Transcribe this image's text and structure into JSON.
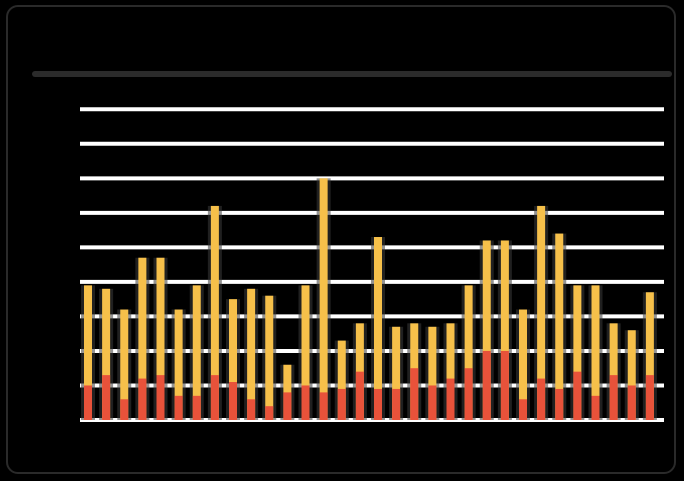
{
  "header": {
    "title": ""
  },
  "colors": {
    "background": "#000000",
    "gridline": "#ffffff",
    "divider": "#2b2b2b",
    "track": "#3a3a3a",
    "series_total": "#f6c04a",
    "series_part": "#e8523a"
  },
  "chart_data": {
    "type": "bar",
    "title": "",
    "xlabel": "",
    "ylabel": "",
    "grid": true,
    "legend": "none",
    "ylim": [
      0,
      9.5
    ],
    "yticks": [
      0,
      1,
      2,
      3,
      4,
      5,
      6,
      7,
      8,
      9
    ],
    "ytick_labels": [
      "",
      "",
      "",
      "",
      "",
      "",
      "",
      "",
      "",
      ""
    ],
    "xtick_labels": [
      "",
      "",
      "",
      ""
    ],
    "xtick_every": 8,
    "series": [
      {
        "values": [
          3.9,
          3.8,
          3.2,
          4.7,
          4.7,
          3.2,
          3.9,
          6.2,
          3.5,
          3.8,
          3.6,
          1.6,
          3.9,
          7.0,
          2.3,
          2.8,
          5.3,
          2.7,
          2.8,
          2.7,
          2.8,
          3.9,
          5.2,
          5.2,
          3.2,
          6.2,
          5.4,
          3.9,
          3.9,
          2.8,
          2.6,
          3.7
        ]
      },
      {
        "values": [
          1.0,
          1.3,
          0.6,
          1.2,
          1.3,
          0.7,
          0.7,
          1.3,
          1.1,
          0.6,
          0.4,
          0.8,
          1.0,
          0.8,
          0.9,
          1.4,
          0.9,
          0.9,
          1.5,
          1.0,
          1.2,
          1.5,
          2.0,
          2.0,
          0.6,
          1.2,
          0.9,
          1.4,
          0.7,
          1.3,
          1.0,
          1.3
        ]
      }
    ]
  }
}
